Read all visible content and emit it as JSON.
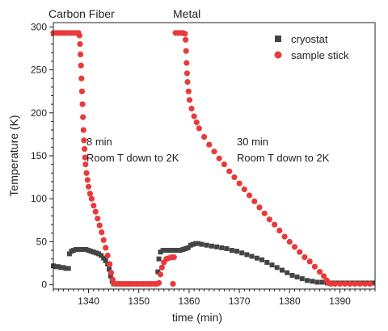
{
  "chart_data": {
    "type": "scatter",
    "xlabel": "time (min)",
    "ylabel": "Temperature (K)",
    "xlim": [
      1333,
      1397
    ],
    "ylim": [
      -5,
      305
    ],
    "x_ticks": [
      1340,
      1350,
      1360,
      1370,
      1380,
      1390
    ],
    "y_ticks": [
      0,
      50,
      100,
      150,
      200,
      250,
      300
    ],
    "legend_position": "top-right",
    "grid": false,
    "labels": {
      "carbon": "Carbon Fiber",
      "metal": "Metal"
    },
    "annotations": [
      {
        "line1": "8 min",
        "line2": "Room T down to 2K"
      },
      {
        "line1": "30 min",
        "line2": "Room T down to 2K"
      }
    ],
    "series": [
      {
        "name": "cryostat",
        "color": "#444444",
        "marker": "square",
        "points": [
          [
            1333,
            22
          ],
          [
            1333.5,
            21
          ],
          [
            1334,
            21
          ],
          [
            1334.5,
            20
          ],
          [
            1335,
            20
          ],
          [
            1335.5,
            19
          ],
          [
            1336,
            19
          ],
          [
            1336.2,
            36
          ],
          [
            1336.6,
            39
          ],
          [
            1337,
            40
          ],
          [
            1337.5,
            41
          ],
          [
            1338,
            41
          ],
          [
            1338.5,
            41
          ],
          [
            1339,
            41
          ],
          [
            1339.5,
            41
          ],
          [
            1340,
            40
          ],
          [
            1340.5,
            39
          ],
          [
            1341,
            38
          ],
          [
            1341.5,
            37
          ],
          [
            1342,
            36
          ],
          [
            1342.5,
            34
          ],
          [
            1343,
            31
          ],
          [
            1343.4,
            28
          ],
          [
            1343.8,
            24
          ],
          [
            1344.1,
            18
          ],
          [
            1344.4,
            10
          ],
          [
            1344.7,
            4
          ],
          [
            1345,
            1
          ],
          [
            1345.5,
            1
          ],
          [
            1346,
            1
          ],
          [
            1346.5,
            1
          ],
          [
            1347,
            1
          ],
          [
            1347.5,
            1
          ],
          [
            1348,
            1
          ],
          [
            1348.5,
            1
          ],
          [
            1349,
            1
          ],
          [
            1349.5,
            1
          ],
          [
            1350,
            1
          ],
          [
            1350.5,
            1
          ],
          [
            1351,
            1
          ],
          [
            1351.5,
            1
          ],
          [
            1352,
            1
          ],
          [
            1352.5,
            1
          ],
          [
            1353,
            1
          ],
          [
            1353.5,
            1
          ],
          [
            1353.8,
            15
          ],
          [
            1354,
            30
          ],
          [
            1354.3,
            38
          ],
          [
            1354.8,
            40
          ],
          [
            1355.3,
            40
          ],
          [
            1355.8,
            40
          ],
          [
            1356.3,
            40
          ],
          [
            1356.8,
            40
          ],
          [
            1357.3,
            40
          ],
          [
            1357.8,
            40
          ],
          [
            1358.3,
            40
          ],
          [
            1358.8,
            41
          ],
          [
            1359.3,
            42
          ],
          [
            1359.8,
            43
          ],
          [
            1360.3,
            46
          ],
          [
            1360.8,
            47
          ],
          [
            1361.3,
            48
          ],
          [
            1361.8,
            48
          ],
          [
            1362.5,
            47
          ],
          [
            1363.5,
            46
          ],
          [
            1364.5,
            45
          ],
          [
            1365.5,
            44
          ],
          [
            1366.5,
            43
          ],
          [
            1367.5,
            42
          ],
          [
            1368.5,
            40
          ],
          [
            1369.5,
            39
          ],
          [
            1370.5,
            37
          ],
          [
            1371.5,
            35
          ],
          [
            1372.5,
            33
          ],
          [
            1373.5,
            31
          ],
          [
            1374.5,
            29
          ],
          [
            1375.5,
            26
          ],
          [
            1376.5,
            23
          ],
          [
            1377.5,
            20
          ],
          [
            1378.5,
            17
          ],
          [
            1379.5,
            14
          ],
          [
            1380.5,
            11
          ],
          [
            1381.5,
            9
          ],
          [
            1382.5,
            7
          ],
          [
            1383.5,
            5
          ],
          [
            1384.5,
            4
          ],
          [
            1385.5,
            3
          ],
          [
            1386.5,
            3
          ],
          [
            1387.5,
            2
          ],
          [
            1388.5,
            2
          ],
          [
            1389.5,
            2
          ],
          [
            1390.5,
            2
          ],
          [
            1391.5,
            2
          ],
          [
            1392.5,
            2
          ],
          [
            1393.5,
            2
          ],
          [
            1394.5,
            2
          ],
          [
            1395.5,
            2
          ],
          [
            1396.5,
            2
          ]
        ]
      },
      {
        "name": "sample stick",
        "color": "#e83a3a",
        "marker": "circle",
        "points": [
          [
            1333,
            293
          ],
          [
            1333.5,
            293
          ],
          [
            1334,
            293
          ],
          [
            1334.5,
            293
          ],
          [
            1335,
            293
          ],
          [
            1335.5,
            293
          ],
          [
            1336,
            293
          ],
          [
            1336.5,
            293
          ],
          [
            1337,
            293
          ],
          [
            1337.5,
            293
          ],
          [
            1338,
            293
          ],
          [
            1338.2,
            290
          ],
          [
            1338.3,
            280
          ],
          [
            1338.4,
            268
          ],
          [
            1338.5,
            255
          ],
          [
            1338.6,
            240
          ],
          [
            1338.7,
            225
          ],
          [
            1338.8,
            210
          ],
          [
            1338.9,
            195
          ],
          [
            1339,
            180
          ],
          [
            1339.1,
            168
          ],
          [
            1339.2,
            158
          ],
          [
            1339.3,
            148
          ],
          [
            1339.4,
            140
          ],
          [
            1339.6,
            130
          ],
          [
            1339.8,
            122
          ],
          [
            1340,
            114
          ],
          [
            1340.3,
            106
          ],
          [
            1340.6,
            100
          ],
          [
            1341,
            92
          ],
          [
            1341.4,
            85
          ],
          [
            1341.8,
            77
          ],
          [
            1342.2,
            69
          ],
          [
            1342.6,
            61
          ],
          [
            1343,
            52
          ],
          [
            1343.4,
            43
          ],
          [
            1343.8,
            34
          ],
          [
            1344.2,
            24
          ],
          [
            1344.5,
            14
          ],
          [
            1344.8,
            6
          ],
          [
            1345,
            2
          ],
          [
            1345.5,
            1
          ],
          [
            1346,
            1
          ],
          [
            1346.5,
            1
          ],
          [
            1347,
            1
          ],
          [
            1347.5,
            1
          ],
          [
            1348,
            1
          ],
          [
            1348.5,
            1
          ],
          [
            1349,
            1
          ],
          [
            1349.5,
            1
          ],
          [
            1350,
            1
          ],
          [
            1350.5,
            1
          ],
          [
            1351,
            1
          ],
          [
            1351.5,
            1
          ],
          [
            1352,
            1
          ],
          [
            1352.5,
            1
          ],
          [
            1353,
            1
          ],
          [
            1353.5,
            1
          ],
          [
            1354,
            2
          ],
          [
            1354.3,
            12
          ],
          [
            1354.6,
            20
          ],
          [
            1355,
            26
          ],
          [
            1355.5,
            30
          ],
          [
            1356,
            31
          ],
          [
            1356.5,
            32
          ],
          [
            1357,
            32
          ],
          [
            1356.8,
            1
          ],
          [
            1357.3,
            293
          ],
          [
            1357.8,
            293
          ],
          [
            1358.3,
            293
          ],
          [
            1358.8,
            293
          ],
          [
            1359.2,
            292
          ],
          [
            1359.3,
            285
          ],
          [
            1359.4,
            272
          ],
          [
            1359.5,
            258
          ],
          [
            1359.6,
            246
          ],
          [
            1359.7,
            236
          ],
          [
            1359.9,
            225
          ],
          [
            1360.1,
            215
          ],
          [
            1360.5,
            205
          ],
          [
            1361,
            196
          ],
          [
            1361.5,
            189
          ],
          [
            1362,
            182
          ],
          [
            1363,
            172
          ],
          [
            1364,
            163
          ],
          [
            1365,
            155
          ],
          [
            1366,
            147
          ],
          [
            1367,
            140
          ],
          [
            1368,
            132
          ],
          [
            1369,
            125
          ],
          [
            1370,
            118
          ],
          [
            1371,
            111
          ],
          [
            1372,
            104
          ],
          [
            1373,
            97
          ],
          [
            1374,
            90
          ],
          [
            1375,
            83
          ],
          [
            1376,
            76
          ],
          [
            1377,
            70
          ],
          [
            1378,
            63
          ],
          [
            1379,
            56
          ],
          [
            1380,
            50
          ],
          [
            1381,
            44
          ],
          [
            1382,
            38
          ],
          [
            1383,
            32
          ],
          [
            1384,
            27
          ],
          [
            1385,
            21
          ],
          [
            1386,
            15
          ],
          [
            1386.8,
            10
          ],
          [
            1387.4,
            5
          ],
          [
            1387.8,
            2
          ],
          [
            1388.2,
            1
          ],
          [
            1389,
            1
          ],
          [
            1390,
            1
          ],
          [
            1391,
            1
          ],
          [
            1392,
            1
          ],
          [
            1393,
            1
          ],
          [
            1394,
            1
          ],
          [
            1395,
            1
          ],
          [
            1396,
            1
          ]
        ]
      }
    ]
  }
}
